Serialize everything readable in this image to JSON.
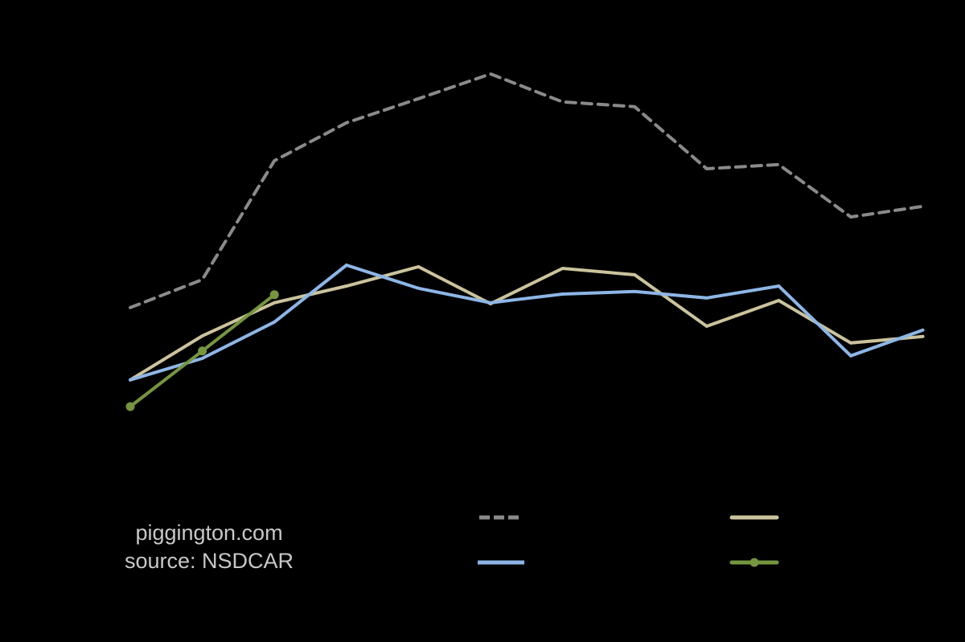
{
  "chart": {
    "title": "",
    "source_line_1": "piggington.com",
    "source_line_2": "source: NSDCAR",
    "background": "#000000"
  },
  "legend": {
    "items": [
      {
        "key": "series_0",
        "label": "",
        "color": "#8a8a8a",
        "style": "dashed"
      },
      {
        "key": "series_1",
        "label": "",
        "color": "#cbc39c",
        "style": "solid"
      },
      {
        "key": "series_2",
        "label": "",
        "color": "#8db6e6",
        "style": "solid"
      },
      {
        "key": "series_3",
        "label": "",
        "color": "#76953f",
        "style": "solid-markers"
      }
    ]
  },
  "chart_data": {
    "type": "line",
    "title": "",
    "xlabel": "",
    "ylabel": "",
    "note": "Axis tick labels, title and legend labels are rendered black-on-black and not visible; x are point indices, y are relative heights estimated from pixel positions.",
    "x": [
      1,
      2,
      3,
      4,
      5,
      6,
      7,
      8,
      9,
      10,
      11,
      12
    ],
    "ylim": [
      0,
      140
    ],
    "grid": false,
    "legend_position": "bottom",
    "series": [
      {
        "name": "",
        "color": "#8a8a8a",
        "dash": true,
        "markers": false,
        "values": [
          44.3,
          53.0,
          90.0,
          101.8,
          109.3,
          117.0,
          108.3,
          106.8,
          87.5,
          88.8,
          72.5,
          75.8
        ]
      },
      {
        "name": "",
        "color": "#cbc39c",
        "dash": false,
        "markers": false,
        "values": [
          21.8,
          35.5,
          45.8,
          51.0,
          57.0,
          45.5,
          56.5,
          54.5,
          38.5,
          46.5,
          33.3,
          35.3
        ]
      },
      {
        "name": "",
        "color": "#8db6e6",
        "dash": false,
        "markers": false,
        "values": [
          21.8,
          28.5,
          39.8,
          57.5,
          50.3,
          45.8,
          48.5,
          49.3,
          47.3,
          51.0,
          29.3,
          37.3
        ]
      },
      {
        "name": "",
        "color": "#76953f",
        "dash": false,
        "markers": true,
        "values": [
          13.5,
          30.8,
          48.3
        ]
      }
    ]
  }
}
